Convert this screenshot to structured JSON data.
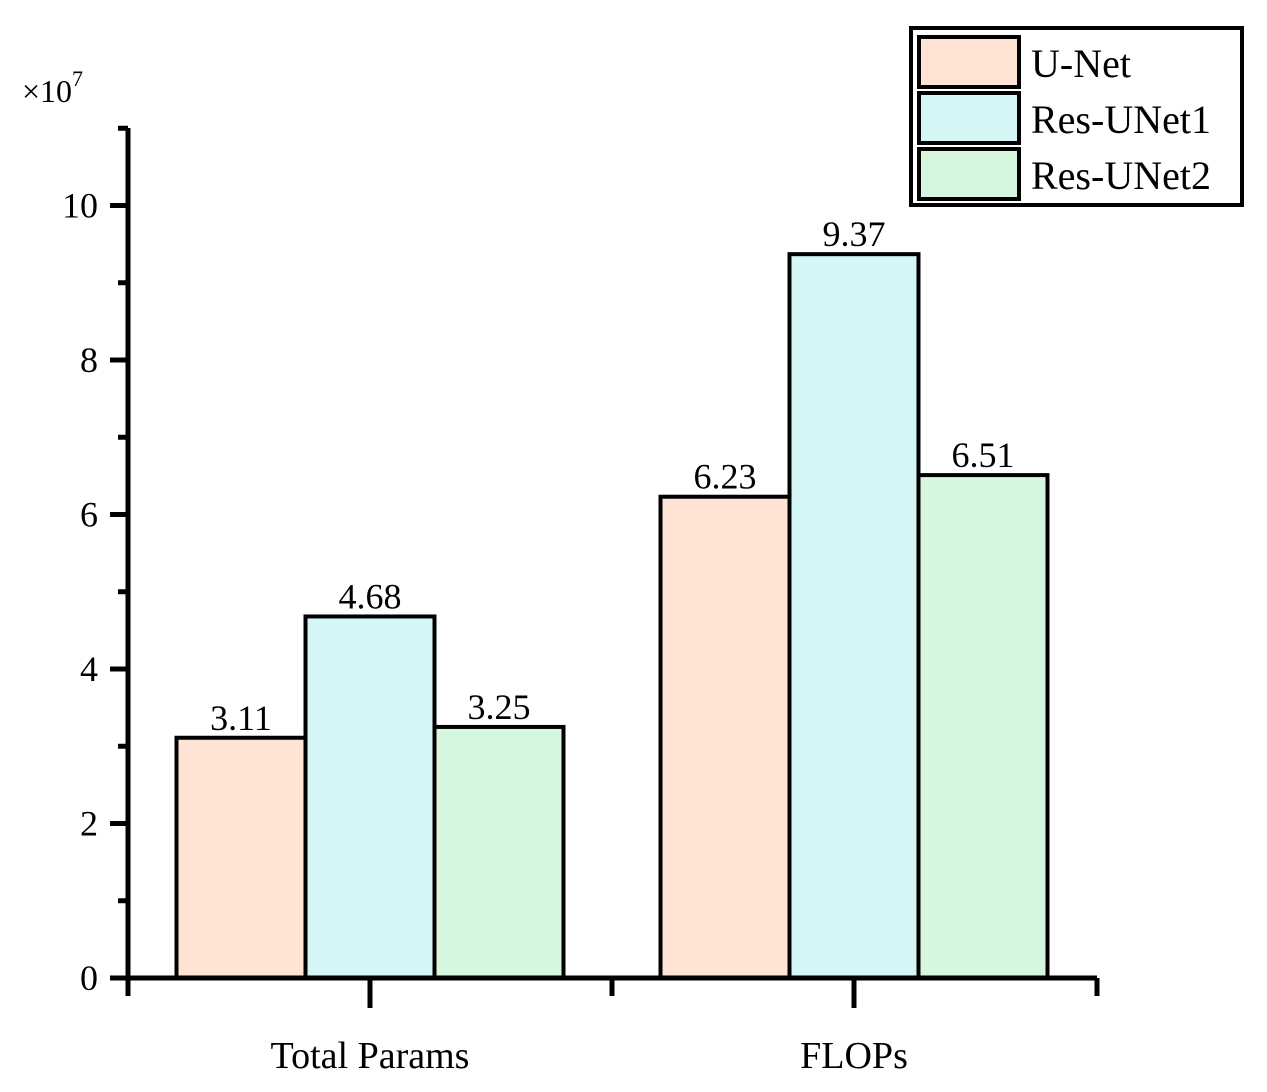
{
  "chart_data": {
    "type": "bar",
    "categories": [
      "Total Params",
      "FLOPs"
    ],
    "series": [
      {
        "name": "U-Net",
        "values": [
          3.11,
          6.23
        ],
        "color": "#FFE4D6"
      },
      {
        "name": "Res-UNet1",
        "values": [
          4.68,
          9.37
        ],
        "color": "#D4F6F6"
      },
      {
        "name": "Res-UNet2",
        "values": [
          3.25,
          6.51
        ],
        "color": "#D6F6DE"
      }
    ],
    "data_labels": [
      [
        "3.11",
        "6.23"
      ],
      [
        "4.68",
        "9.37"
      ],
      [
        "3.25",
        "6.51"
      ]
    ],
    "y_ticks": [
      0,
      2,
      4,
      6,
      8,
      10
    ],
    "y_tick_labels": [
      "0",
      "2",
      "4",
      "6",
      "8",
      "10"
    ],
    "ylim": [
      0,
      11
    ],
    "y_multiplier": {
      "base": "×10",
      "exponent": "7"
    },
    "legend_position": "top-right",
    "grid": false,
    "title": "",
    "xlabel": "",
    "ylabel": ""
  }
}
